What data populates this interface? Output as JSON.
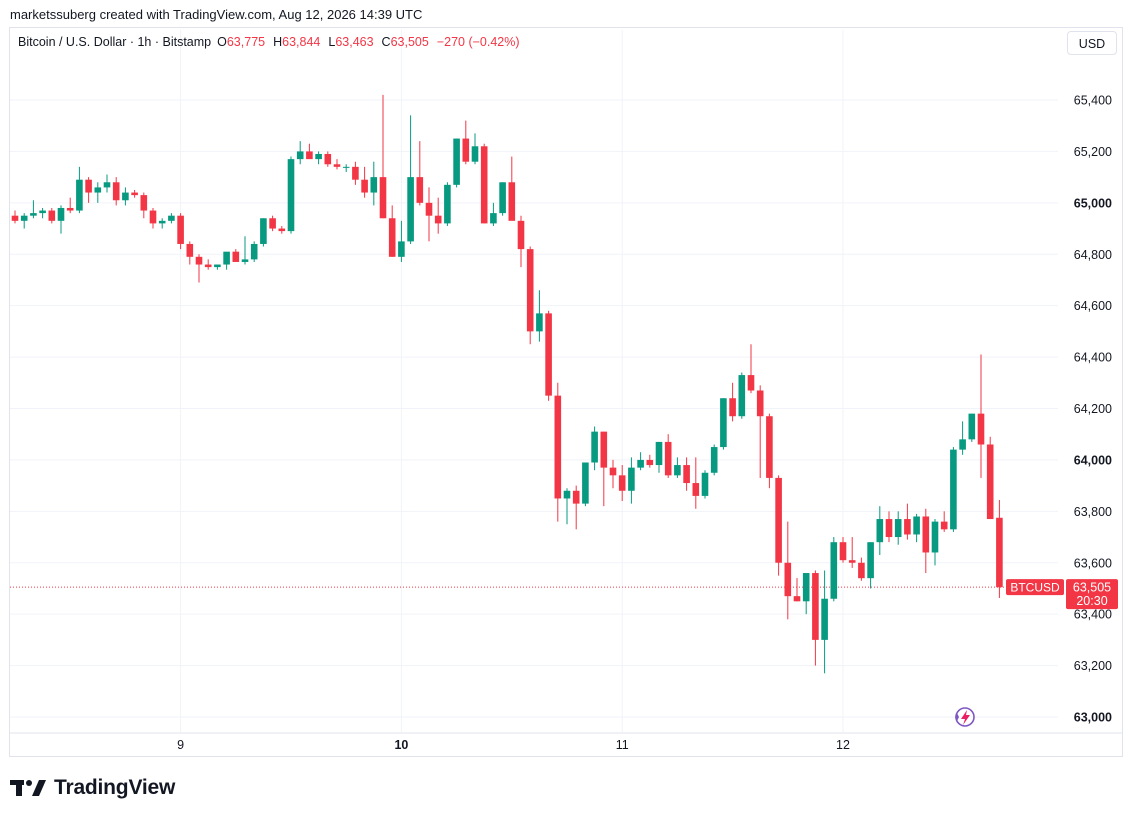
{
  "attribution": "marketssuberg created with TradingView.com, Aug 12, 2026 14:39 UTC",
  "legend": {
    "symbol": "Bitcoin / U.S. Dollar · 1h · Bitstamp",
    "open_label": "O",
    "open": "63,775",
    "high_label": "H",
    "high": "63,844",
    "low_label": "L",
    "low": "63,463",
    "close_label": "C",
    "close": "63,505",
    "change": "−270 (−0.42%)"
  },
  "currency_button": "USD",
  "price_tag": {
    "ticker": "BTCUSD",
    "price": "63,505",
    "countdown": "20:30"
  },
  "brand": "TradingView",
  "colors": {
    "up": "#089981",
    "down": "#f23645",
    "grid": "#f0f3fa",
    "text": "#131722"
  },
  "chart_data": {
    "type": "candlestick",
    "symbol": "BTCUSD",
    "interval": "1h",
    "ylim": [
      62900,
      65700
    ],
    "y_ticks": [
      {
        "value": 63000,
        "label": "63,000",
        "bold": true
      },
      {
        "value": 63200,
        "label": "63,200",
        "bold": false
      },
      {
        "value": 63400,
        "label": "63,400",
        "bold": false
      },
      {
        "value": 63600,
        "label": "63,600",
        "bold": false
      },
      {
        "value": 63800,
        "label": "63,800",
        "bold": false
      },
      {
        "value": 64000,
        "label": "64,000",
        "bold": true
      },
      {
        "value": 64200,
        "label": "64,200",
        "bold": false
      },
      {
        "value": 64400,
        "label": "64,400",
        "bold": false
      },
      {
        "value": 64600,
        "label": "64,600",
        "bold": false
      },
      {
        "value": 64800,
        "label": "64,800",
        "bold": false
      },
      {
        "value": 65000,
        "label": "65,000",
        "bold": true
      },
      {
        "value": 65200,
        "label": "65,200",
        "bold": false
      },
      {
        "value": 65400,
        "label": "65,400",
        "bold": false
      }
    ],
    "x_ticks": [
      {
        "index": 18,
        "label": "9",
        "bold": false
      },
      {
        "index": 42,
        "label": "10",
        "bold": true
      },
      {
        "index": 66,
        "label": "11",
        "bold": false
      },
      {
        "index": 90,
        "label": "12",
        "bold": false
      }
    ],
    "last_price": 63505,
    "candles": [
      [
        64950,
        64970,
        64920,
        64930
      ],
      [
        64930,
        64960,
        64900,
        64950
      ],
      [
        64950,
        65010,
        64940,
        64960
      ],
      [
        64960,
        64980,
        64940,
        64970
      ],
      [
        64970,
        64980,
        64920,
        64930
      ],
      [
        64930,
        64990,
        64880,
        64980
      ],
      [
        64980,
        65020,
        64960,
        64970
      ],
      [
        64970,
        65140,
        64960,
        65090
      ],
      [
        65090,
        65100,
        65000,
        65040
      ],
      [
        65040,
        65080,
        65000,
        65060
      ],
      [
        65060,
        65110,
        65040,
        65080
      ],
      [
        65080,
        65100,
        64990,
        65010
      ],
      [
        65010,
        65060,
        64990,
        65040
      ],
      [
        65040,
        65050,
        65020,
        65030
      ],
      [
        65030,
        65040,
        64940,
        64970
      ],
      [
        64970,
        64980,
        64900,
        64920
      ],
      [
        64920,
        64940,
        64900,
        64930
      ],
      [
        64930,
        64960,
        64920,
        64950
      ],
      [
        64950,
        64960,
        64820,
        64840
      ],
      [
        64840,
        64850,
        64760,
        64790
      ],
      [
        64790,
        64800,
        64690,
        64760
      ],
      [
        64760,
        64780,
        64740,
        64750
      ],
      [
        64750,
        64760,
        64740,
        64760
      ],
      [
        64760,
        64800,
        64740,
        64810
      ],
      [
        64810,
        64820,
        64770,
        64770
      ],
      [
        64770,
        64870,
        64760,
        64780
      ],
      [
        64780,
        64850,
        64770,
        64840
      ],
      [
        64840,
        64940,
        64830,
        64940
      ],
      [
        64940,
        64950,
        64890,
        64900
      ],
      [
        64900,
        64910,
        64880,
        64890
      ],
      [
        64890,
        65180,
        64880,
        65170
      ],
      [
        65170,
        65240,
        65150,
        65200
      ],
      [
        65200,
        65230,
        65180,
        65170
      ],
      [
        65170,
        65200,
        65150,
        65190
      ],
      [
        65190,
        65200,
        65140,
        65150
      ],
      [
        65150,
        65170,
        65130,
        65140
      ],
      [
        65140,
        65150,
        65120,
        65140
      ],
      [
        65140,
        65160,
        65070,
        65090
      ],
      [
        65090,
        65140,
        65020,
        65040
      ],
      [
        65040,
        65160,
        64990,
        65100
      ],
      [
        65100,
        65420,
        64940,
        64940
      ],
      [
        64940,
        64990,
        64790,
        64790
      ],
      [
        64790,
        64930,
        64770,
        64850
      ],
      [
        64850,
        65340,
        64840,
        65100
      ],
      [
        65100,
        65240,
        64990,
        65000
      ],
      [
        65000,
        65060,
        64850,
        64950
      ],
      [
        64950,
        65020,
        64880,
        64920
      ],
      [
        64920,
        65080,
        64910,
        65070
      ],
      [
        65070,
        65250,
        65060,
        65250
      ],
      [
        65250,
        65320,
        65150,
        65160
      ],
      [
        65160,
        65270,
        65150,
        65220
      ],
      [
        65220,
        65230,
        64920,
        64920
      ],
      [
        64920,
        65000,
        64910,
        64960
      ],
      [
        64960,
        65080,
        64950,
        65080
      ],
      [
        65080,
        65180,
        64940,
        64930
      ],
      [
        64930,
        64950,
        64750,
        64820
      ],
      [
        64820,
        64830,
        64450,
        64500
      ],
      [
        64500,
        64660,
        64460,
        64570
      ],
      [
        64570,
        64580,
        64230,
        64250
      ],
      [
        64250,
        64300,
        63760,
        63850
      ],
      [
        63850,
        63890,
        63750,
        63880
      ],
      [
        63880,
        63900,
        63730,
        63830
      ],
      [
        63830,
        63980,
        63820,
        63990
      ],
      [
        63990,
        64130,
        63960,
        64110
      ],
      [
        64110,
        64110,
        63820,
        63970
      ],
      [
        63970,
        64000,
        63890,
        63940
      ],
      [
        63940,
        63980,
        63840,
        63880
      ],
      [
        63880,
        64010,
        63830,
        63970
      ],
      [
        63970,
        64030,
        63960,
        64000
      ],
      [
        64000,
        64020,
        63970,
        63980
      ],
      [
        63980,
        64070,
        63950,
        64070
      ],
      [
        64070,
        64100,
        63930,
        63940
      ],
      [
        63940,
        64010,
        63930,
        63980
      ],
      [
        63980,
        64010,
        63880,
        63910
      ],
      [
        63910,
        64010,
        63810,
        63860
      ],
      [
        63860,
        63960,
        63850,
        63950
      ],
      [
        63950,
        64060,
        63940,
        64050
      ],
      [
        64050,
        64240,
        64040,
        64240
      ],
      [
        64240,
        64300,
        64150,
        64170
      ],
      [
        64170,
        64340,
        64160,
        64330
      ],
      [
        64330,
        64450,
        64260,
        64270
      ],
      [
        64270,
        64290,
        63930,
        64170
      ],
      [
        64170,
        64180,
        63890,
        63930
      ],
      [
        63930,
        63940,
        63550,
        63600
      ],
      [
        63600,
        63760,
        63380,
        63470
      ],
      [
        63470,
        63540,
        63450,
        63450
      ],
      [
        63450,
        63550,
        63400,
        63560
      ],
      [
        63560,
        63570,
        63200,
        63300
      ],
      [
        63300,
        63570,
        63170,
        63460
      ],
      [
        63460,
        63700,
        63450,
        63680
      ],
      [
        63680,
        63700,
        63600,
        63610
      ],
      [
        63610,
        63700,
        63580,
        63600
      ],
      [
        63600,
        63620,
        63530,
        63540
      ],
      [
        63540,
        63680,
        63500,
        63680
      ],
      [
        63680,
        63820,
        63630,
        63770
      ],
      [
        63770,
        63800,
        63680,
        63700
      ],
      [
        63700,
        63800,
        63670,
        63770
      ],
      [
        63770,
        63830,
        63690,
        63710
      ],
      [
        63710,
        63790,
        63680,
        63780
      ],
      [
        63780,
        63810,
        63560,
        63640
      ],
      [
        63640,
        63770,
        63590,
        63760
      ],
      [
        63760,
        63800,
        63720,
        63730
      ],
      [
        63730,
        64050,
        63720,
        64040
      ],
      [
        64040,
        64150,
        64020,
        64080
      ],
      [
        64080,
        64180,
        64070,
        64180
      ],
      [
        64180,
        64410,
        63930,
        64060
      ],
      [
        64060,
        64090,
        63770,
        63770
      ],
      [
        63775,
        63844,
        63463,
        63505
      ]
    ]
  }
}
